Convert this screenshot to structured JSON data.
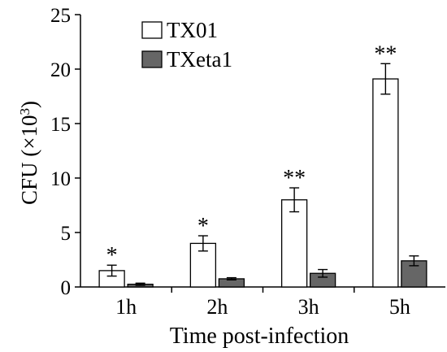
{
  "chart_data": {
    "type": "bar",
    "categories": [
      "1h",
      "2h",
      "3h",
      "5h"
    ],
    "series": [
      {
        "name": "TX01",
        "color": "#ffffff",
        "values": [
          1.5,
          4.0,
          8.0,
          19.1
        ],
        "errors": [
          0.5,
          0.7,
          1.1,
          1.4
        ]
      },
      {
        "name": "TXeta1",
        "color": "#666666",
        "values": [
          0.25,
          0.75,
          1.25,
          2.4
        ],
        "errors": [
          0.1,
          0.1,
          0.35,
          0.45
        ]
      }
    ],
    "annotations": [
      {
        "category": "1h",
        "series": "TX01",
        "text": "*"
      },
      {
        "category": "2h",
        "series": "TX01",
        "text": "*"
      },
      {
        "category": "3h",
        "series": "TX01",
        "text": "**"
      },
      {
        "category": "5h",
        "series": "TX01",
        "text": "**"
      }
    ],
    "title": "",
    "xlabel": "Time post-infection",
    "ylabel_base": "CFU (×10",
    "ylabel_exp": "3",
    "ylabel_close": ")",
    "ylim": [
      0,
      25
    ],
    "yticks": [
      0,
      5,
      10,
      15,
      20,
      25
    ],
    "legend_position": "top-left",
    "grid": false
  }
}
